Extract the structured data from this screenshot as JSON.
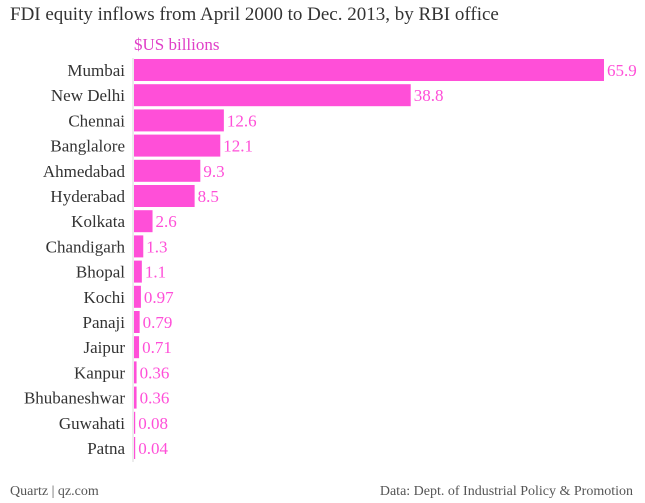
{
  "chart_data": {
    "type": "bar",
    "orientation": "horizontal",
    "title": "FDI equity inflows from April 2000 to Dec. 2013, by RBI office",
    "unit_label": "$US billions",
    "categories": [
      "Mumbai",
      "New Delhi",
      "Chennai",
      "Banglalore",
      "Ahmedabad",
      "Hyderabad",
      "Kolkata",
      "Chandigarh",
      "Bhopal",
      "Kochi",
      "Panaji",
      "Jaipur",
      "Kanpur",
      "Bhubaneshwar",
      "Guwahati",
      "Patna"
    ],
    "values": [
      65.9,
      38.8,
      12.6,
      12.1,
      9.3,
      8.5,
      2.6,
      1.3,
      1.1,
      0.97,
      0.79,
      0.71,
      0.36,
      0.36,
      0.08,
      0.04
    ],
    "value_labels": [
      "65.9",
      "38.8",
      "12.6",
      "12.1",
      "9.3",
      "8.5",
      "2.6",
      "1.3",
      "1.1",
      "0.97",
      "0.79",
      "0.71",
      "0.36",
      "0.36",
      "0.08",
      "0.04"
    ],
    "xlim": [
      0,
      65.9
    ],
    "grid": false,
    "colors": {
      "bar": "#ff4fd8",
      "value_label": "#ff4fd8",
      "unit_label": "#e040c8",
      "category_label": "#333333"
    }
  },
  "footer": {
    "credit": "Quartz | qz.com",
    "source": "Data: Dept. of Industrial Policy & Promotion"
  }
}
